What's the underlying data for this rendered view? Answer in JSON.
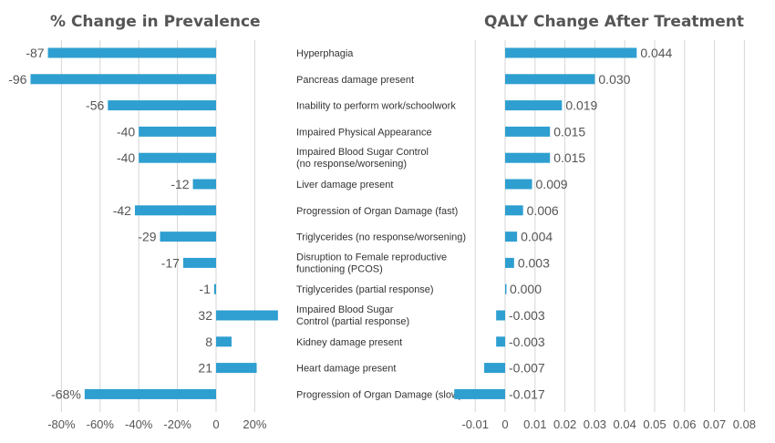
{
  "chart_data": [
    {
      "type": "bar",
      "orientation": "horizontal",
      "title": "% Change in Prevalence",
      "categories": [
        "Hyperphagia",
        "Pancreas damage present",
        "Inability to perform work/schoolwork",
        "Impaired Physical Appearance",
        "Impaired Blood Sugar Control (no response/worsening)",
        "Liver damage present",
        "Progression of Organ Damage (fast)",
        "Triglycerides (no response/worsening)",
        "Disruption to Female reproductive functioning (PCOS)",
        "Triglycerides (partial response)",
        "Impaired Blood Sugar Control (partial response)",
        "Kidney damage present",
        "Heart damage present",
        "Progression of Organ Damage (slow)"
      ],
      "category_lines": [
        [
          "Hyperphagia"
        ],
        [
          "Pancreas damage present"
        ],
        [
          "Inability to perform work/schoolwork"
        ],
        [
          "Impaired Physical Appearance"
        ],
        [
          "Impaired Blood Sugar Control",
          "(no response/worsening)"
        ],
        [
          "Liver damage present"
        ],
        [
          "Progression of Organ Damage (fast)"
        ],
        [
          "Triglycerides (no response/worsening)"
        ],
        [
          "Disruption to Female reproductive",
          "functioning (PCOS)"
        ],
        [
          "Triglycerides (partial response)"
        ],
        [
          "Impaired Blood Sugar",
          "Control (partial response)"
        ],
        [
          "Kidney damage present"
        ],
        [
          "Heart damage present"
        ],
        [
          "Progression of Organ Damage (slow)"
        ]
      ],
      "values": [
        -87,
        -96,
        -56,
        -40,
        -40,
        -12,
        -42,
        -29,
        -17,
        -1,
        32,
        8,
        21,
        -68
      ],
      "value_labels": [
        "-87",
        "-96",
        "-56",
        "-40",
        "-40",
        "-12",
        "-42",
        "-29",
        "-17",
        "-1",
        "32",
        "8",
        "21",
        "-68%"
      ],
      "xlim": [
        -94,
        30
      ],
      "xticks": [
        -80,
        -60,
        -40,
        -20,
        0,
        20
      ],
      "xtick_labels": [
        "-80%",
        "-60%",
        "-40%",
        "-20%",
        "0",
        "20%"
      ],
      "grid": true,
      "bar_color": "#2e9fd0"
    },
    {
      "type": "bar",
      "orientation": "horizontal",
      "title": "QALY Change After Treatment",
      "values": [
        0.044,
        0.03,
        0.019,
        0.015,
        0.015,
        0.009,
        0.006,
        0.004,
        0.003,
        0.0003,
        -0.003,
        -0.003,
        -0.007,
        -0.017
      ],
      "value_labels": [
        "0.044",
        "0.030",
        "0.019",
        "0.015",
        "0.015",
        "0.009",
        "0.006",
        "0.004",
        "0.003",
        "0.000",
        "-0.003",
        "-0.003",
        "-0.007",
        "-0.017"
      ],
      "xlim": [
        -0.017,
        0.08
      ],
      "xticks": [
        -0.01,
        0,
        0.01,
        0.02,
        0.03,
        0.04,
        0.05,
        0.06,
        0.07,
        0.08
      ],
      "xtick_labels": [
        "-0.01",
        "0",
        "0.01",
        "0.02",
        "0.03",
        "0.04",
        "0.05",
        "0.06",
        "0.07",
        "0.08"
      ],
      "grid": true,
      "bar_color": "#2e9fd0"
    }
  ]
}
